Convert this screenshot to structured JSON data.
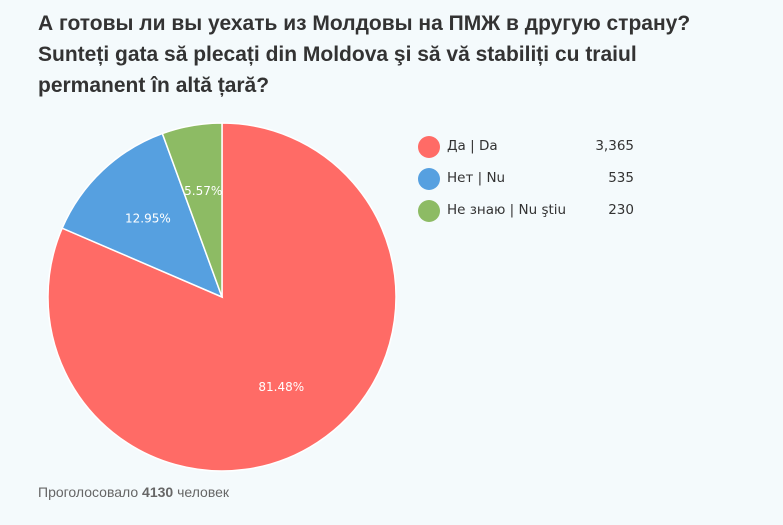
{
  "chart_data": {
    "type": "pie",
    "title": [
      "А готовы ли вы уехать из Молдовы на ПМЖ в другую страну?",
      "Sunteți gata să plecați din Moldova şi să vă stabiliți cu traiul",
      "permanent în altă țară?"
    ],
    "slices": [
      {
        "label": "Да | Da",
        "value": 3365,
        "value_text": "3,365",
        "percent_text": "81.48%",
        "color": "#ff6b66"
      },
      {
        "label": "Нет | Nu",
        "value": 535,
        "value_text": "535",
        "percent_text": "12.95%",
        "color": "#56a0e0"
      },
      {
        "label": "Не знаю | Nu ştiu",
        "value": 230,
        "value_text": "230",
        "percent_text": "5.57%",
        "color": "#8dbb64"
      }
    ],
    "legend_position": "right"
  },
  "footer": {
    "prefix": "Проголосовало",
    "count": "4130",
    "suffix": "человек"
  }
}
